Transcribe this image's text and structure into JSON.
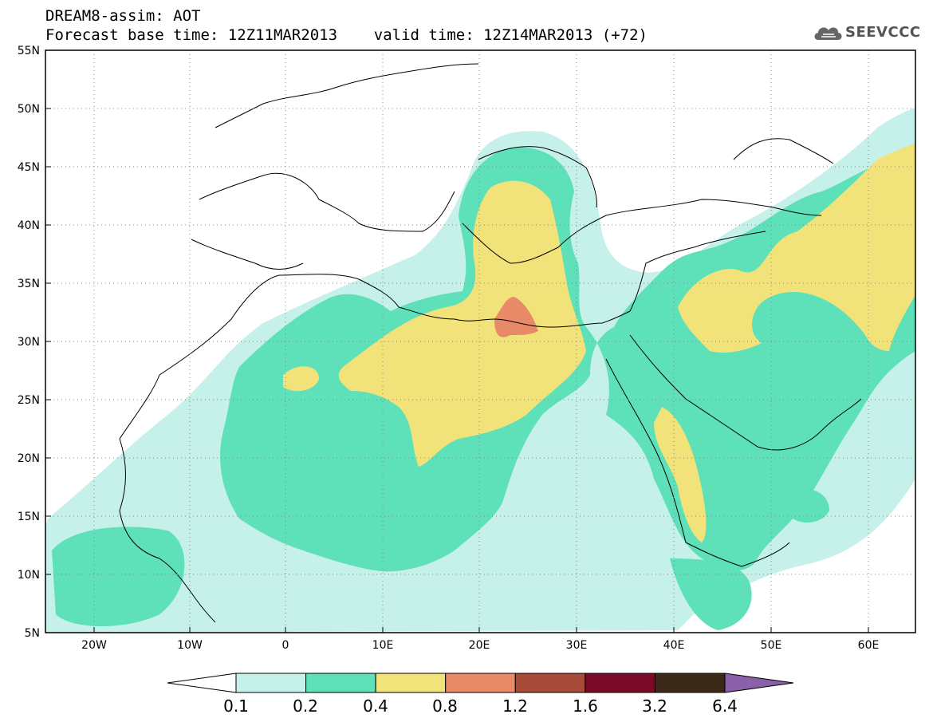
{
  "header": {
    "title_line1": "DREAM8-assim: AOT",
    "title_line2": "Forecast base time: 12Z11MAR2013    valid time: 12Z14MAR2013 (+72)",
    "logo_text": "SEEVCCC"
  },
  "map": {
    "lon_labels": [
      "20W",
      "10W",
      "0",
      "10E",
      "20E",
      "30E",
      "40E",
      "50E",
      "60E"
    ],
    "lat_labels": [
      "55N",
      "50N",
      "45N",
      "40N",
      "35N",
      "30N",
      "25N",
      "20N",
      "15N",
      "10N",
      "5N"
    ],
    "grid": "dotted",
    "projection": "lat-lon"
  },
  "colorbar": {
    "labels": [
      "0.1",
      "0.2",
      "0.4",
      "0.8",
      "1.2",
      "1.6",
      "3.2",
      "6.4"
    ],
    "colors": [
      "#c6f0ea",
      "#5ee0b8",
      "#f2e27a",
      "#e88a68",
      "#a84a3a",
      "#7a0a28",
      "#3a2818"
    ],
    "under_color": "#ffffff",
    "over_color": "#8a60a8"
  },
  "legend_colors": {
    "aot_01_02": "#c6f0ea",
    "aot_02_04": "#5ee0b8",
    "aot_04_08": "#f2e27a",
    "aot_08_12": "#e88a68"
  }
}
